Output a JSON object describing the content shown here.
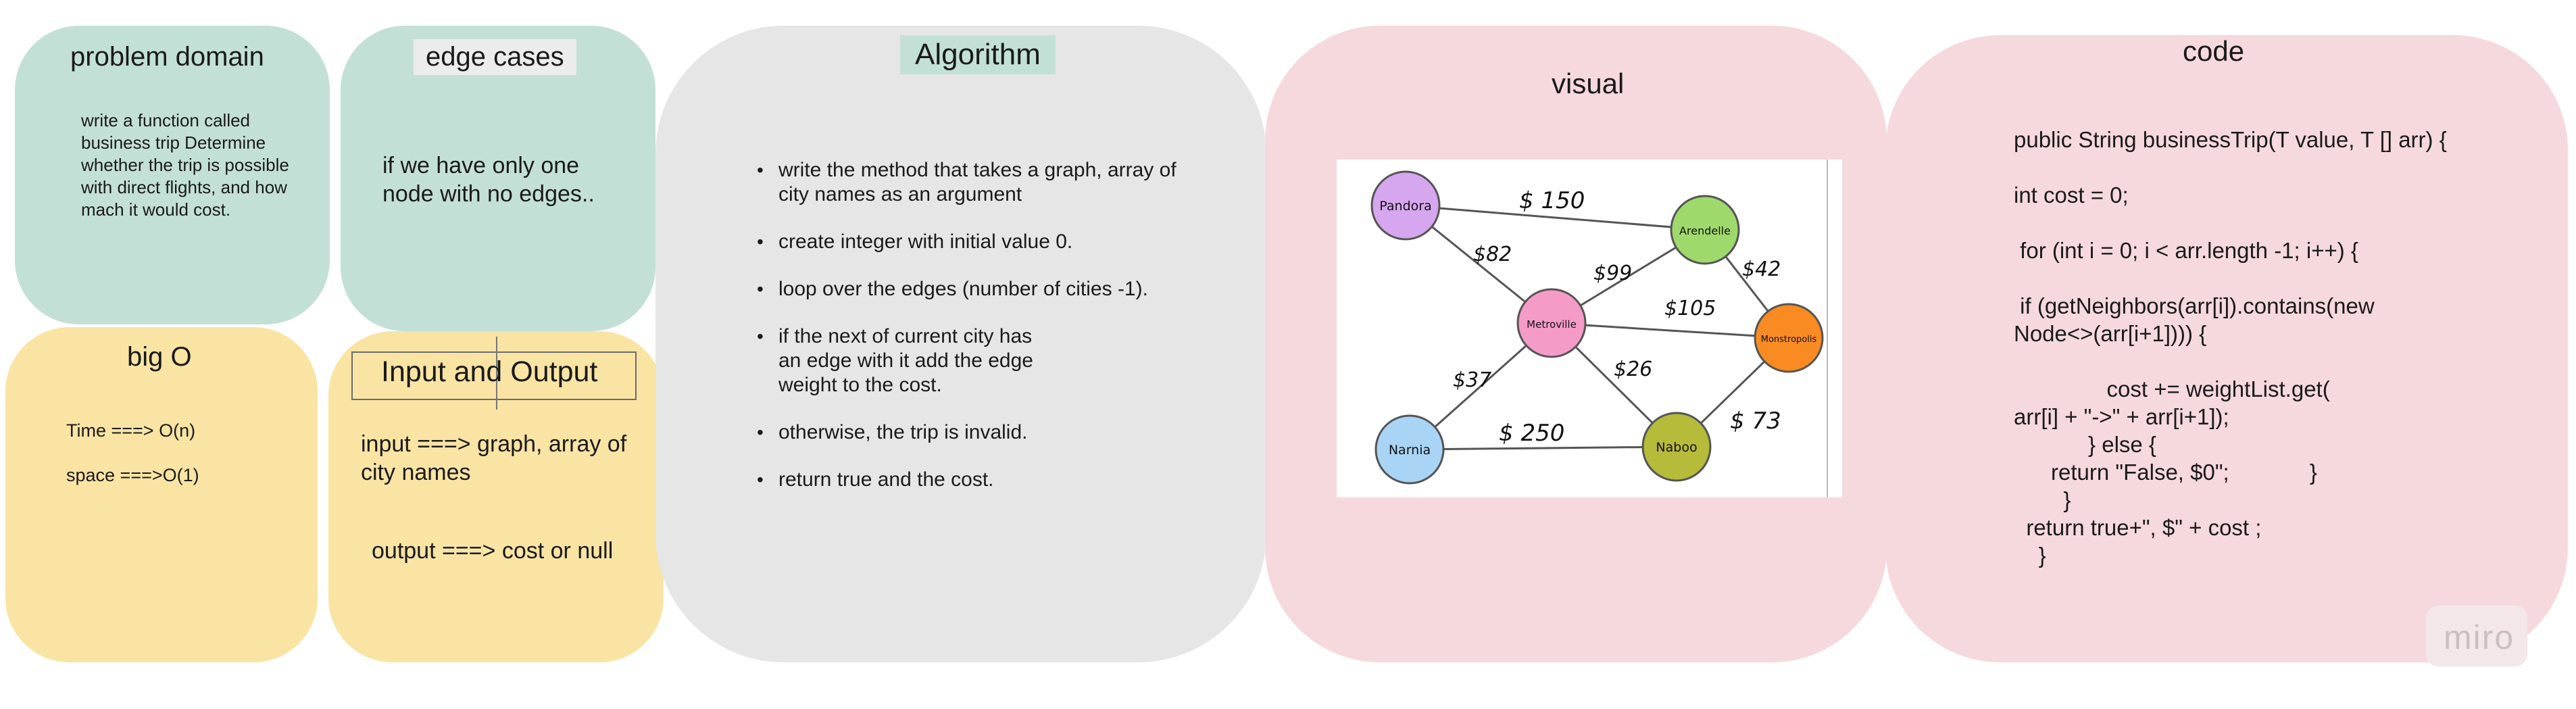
{
  "colors": {
    "teal": "#c3e0d7",
    "yellow": "#f9e4a4",
    "gray": "#e6e6e6",
    "pink": "#f6d9dc",
    "node_pandora": "#d6a6ef",
    "node_arendelle": "#9fd96c",
    "node_metroville": "#f59bc8",
    "node_monstropolis": "#f98b22",
    "node_narnia": "#a9d4f5",
    "node_naboo": "#b6bb3a"
  },
  "problem_domain": {
    "title": "problem domain",
    "text": "write a function called business trip Determine whether the trip is possible with direct flights, and how mach it would cost."
  },
  "edge_cases": {
    "title": "edge cases",
    "text": "if we have only one node with no edges.."
  },
  "big_o": {
    "title": "big O",
    "time": "Time ===> O(n)",
    "space": "space ===>O(1)"
  },
  "input_output": {
    "title": "Input and Output",
    "input": "input ===> graph, array of city names",
    "output": "output ===> cost or null"
  },
  "algorithm": {
    "title": "Algorithm",
    "steps": [
      "write the method that takes a graph, array of city names as an argument",
      "create integer with initial value 0.",
      "loop over the edges (number of cities -1).",
      "if the next of current city has\n an edge with it add the edge\n weight to the cost.",
      "otherwise, the trip is invalid.",
      "return true and the cost."
    ]
  },
  "visual": {
    "title": "visual",
    "nodes": {
      "pandora": "Pandora",
      "arendelle": "Arendelle",
      "metroville": "Metroville",
      "monstropolis": "Monstropolis",
      "narnia": "Narnia",
      "naboo": "Naboo"
    },
    "edge_labels": {
      "pandora_arendelle": "$ 150",
      "pandora_metroville": "$82",
      "metroville_arendelle": "$99",
      "metroville_monstropolis": "$105",
      "arendelle_monstropolis": "$42",
      "metroville_narnia": "$37",
      "metroville_naboo": "$26",
      "narnia_naboo": "$ 250",
      "naboo_monstropolis": "$ 73"
    }
  },
  "code": {
    "title": "code",
    "lines": [
      "public String businessTrip(T value, T [] arr) {",
      "",
      "int cost = 0;",
      "",
      " for (int i = 0; i < arr.length -1; i++) {",
      "",
      " if (getNeighbors(arr[i]).contains(new",
      "Node<>(arr[i+1]))) {",
      "",
      "               cost += weightList.get(",
      "arr[i] + \"->\" + arr[i+1]);",
      "            } else {",
      "      return \"False, $0\";             }",
      "        }",
      "  return true+\", $\" + cost ;",
      "    }"
    ]
  },
  "branding": {
    "logo": "miro"
  }
}
